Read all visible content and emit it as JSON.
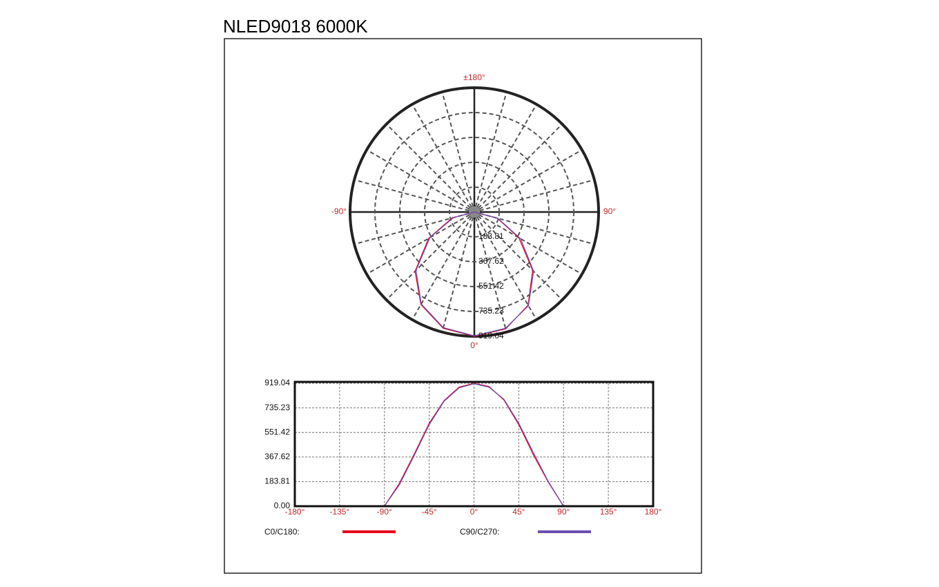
{
  "title": "NLED9018  6000K",
  "chart_data": [
    {
      "type": "polar",
      "angles": [
        -180,
        -165,
        -150,
        -135,
        -120,
        -105,
        -90,
        -75,
        -60,
        -45,
        -30,
        -15,
        0,
        15,
        30,
        45,
        60,
        75,
        90,
        105,
        120,
        135,
        150,
        165,
        180
      ],
      "series": [
        {
          "color": "#e8001c",
          "values": [
            0,
            0,
            0,
            0,
            0,
            0,
            0,
            170,
            390,
            620,
            790,
            890,
            919,
            895,
            795,
            610,
            380,
            175,
            0,
            0,
            0,
            0,
            0,
            0,
            0
          ]
        },
        {
          "color": "#6a4fb0",
          "values": [
            0,
            0,
            0,
            0,
            0,
            0,
            0,
            160,
            380,
            610,
            785,
            885,
            916,
            890,
            800,
            620,
            395,
            180,
            0,
            0,
            0,
            0,
            0,
            0,
            0
          ]
        }
      ],
      "rlim": [
        0,
        919.04
      ],
      "rticks": [
        183.81,
        367.62,
        551.42,
        735.23,
        919.04
      ],
      "angle_labels": [
        {
          "value": 180,
          "label": "±180°"
        },
        {
          "value": -90,
          "label": "-90°"
        },
        {
          "value": 90,
          "label": "90°"
        },
        {
          "value": 0,
          "label": "0°"
        }
      ]
    },
    {
      "type": "line",
      "x": [
        -180,
        -165,
        -150,
        -135,
        -120,
        -105,
        -90,
        -75,
        -60,
        -45,
        -30,
        -15,
        0,
        15,
        30,
        45,
        60,
        75,
        90,
        105,
        120,
        135,
        150,
        165,
        180
      ],
      "series": [
        {
          "name": "C0/C180:",
          "color": "#e8001c",
          "values": [
            0,
            0,
            0,
            0,
            0,
            0,
            0,
            170,
            390,
            620,
            790,
            890,
            919,
            895,
            795,
            610,
            380,
            175,
            0,
            0,
            0,
            0,
            0,
            0,
            0
          ]
        },
        {
          "name": "C90/C270:",
          "color": "#6a4fb0",
          "values": [
            0,
            0,
            0,
            0,
            0,
            0,
            0,
            160,
            380,
            610,
            785,
            885,
            916,
            890,
            800,
            620,
            395,
            180,
            0,
            0,
            0,
            0,
            0,
            0,
            0
          ]
        }
      ],
      "xlim": [
        -180,
        180
      ],
      "ylim": [
        0,
        919.04
      ],
      "xticks": [
        {
          "value": -180,
          "label": "-180°"
        },
        {
          "value": -135,
          "label": "-135°"
        },
        {
          "value": -90,
          "label": "-90°"
        },
        {
          "value": -45,
          "label": "-45°"
        },
        {
          "value": 0,
          "label": "0°"
        },
        {
          "value": 45,
          "label": "45°"
        },
        {
          "value": 90,
          "label": "90°"
        },
        {
          "value": 135,
          "label": "135°"
        },
        {
          "value": 180,
          "label": "180°"
        }
      ],
      "yticks": [
        {
          "value": 0,
          "label": "0.00"
        },
        183.81,
        367.62,
        551.42,
        735.23,
        919.04
      ],
      "grid": true
    }
  ]
}
